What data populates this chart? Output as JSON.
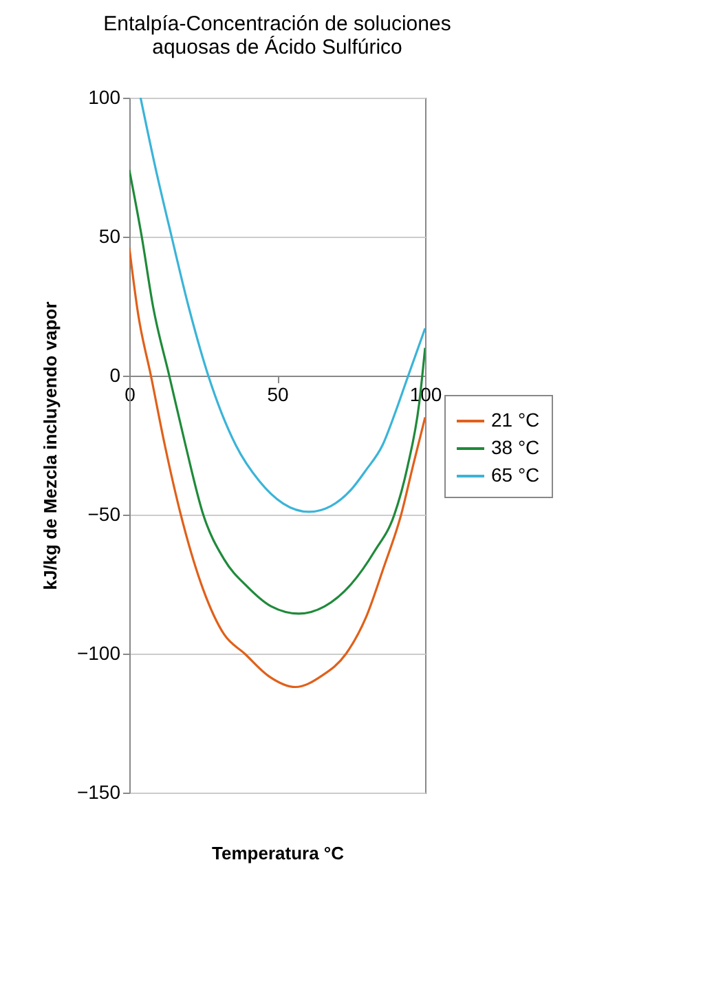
{
  "chart_data": {
    "type": "line",
    "title": "Entalpía-Concentración de soluciones\naquosas de Ácido Sulfúrico",
    "xlabel": "Temperatura °C",
    "ylabel": "kJ/kg de Mezcla incluyendo vapor",
    "xlim": [
      0,
      100
    ],
    "xticks": [
      0,
      50,
      100
    ],
    "ylim": [
      -150,
      100
    ],
    "yticks": [
      -150,
      -100,
      -50,
      0,
      50,
      100
    ],
    "grid": "y",
    "legend": "right",
    "marker": "none",
    "line_style": "solid",
    "series": [
      {
        "name": "21 °C",
        "color": "#e0601a",
        "x": [
          0,
          3,
          7.3,
          12,
          17.4,
          25,
          32,
          39,
          47,
          56.2,
          65,
          73.3,
          80,
          86,
          91.9,
          96,
          100
        ],
        "values": [
          46,
          22,
          0,
          -25,
          -50,
          -77,
          -93,
          -100,
          -108,
          -112,
          -108,
          -100,
          -87,
          -69,
          -50,
          -32,
          -15
        ]
      },
      {
        "name": "38 °C",
        "color": "#1f8a3a",
        "x": [
          0,
          4.2,
          8,
          13.5,
          19,
          25,
          32,
          40,
          48,
          57.3,
          66,
          75,
          83,
          89.6,
          94,
          98,
          100
        ],
        "values": [
          74,
          50,
          25,
          0,
          -25,
          -50,
          -66,
          -76,
          -83,
          -85.6,
          -83,
          -75,
          -63,
          -50,
          -33,
          -10,
          10
        ]
      },
      {
        "name": "65 °C",
        "color": "#3ab4d8",
        "x": [
          3.8,
          9,
          14.3,
          20,
          26.7,
          36,
          44,
          52,
          60.8,
          68,
          75,
          80,
          85.6,
          90,
          94.3,
          100
        ],
        "values": [
          100,
          74,
          50,
          25,
          0,
          -25,
          -38,
          -46,
          -49,
          -47,
          -41,
          -34,
          -25,
          -13,
          0,
          17
        ]
      }
    ]
  }
}
